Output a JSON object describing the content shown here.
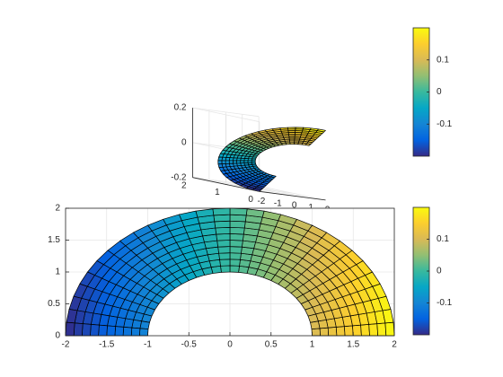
{
  "chart_data": [
    {
      "type": "surface3d",
      "title": "",
      "xlabel": "",
      "ylabel": "",
      "zlabel": "",
      "x_ticks": [
        "-2",
        "-1",
        "0",
        "1",
        "2"
      ],
      "y_ticks": [
        "0",
        "1",
        "2"
      ],
      "z_ticks": [
        "-0.2",
        "0",
        "0.2"
      ],
      "xlim": [
        -2,
        2
      ],
      "ylim": [
        0,
        2
      ],
      "zlim": [
        -0.2,
        0.2
      ],
      "grid": true,
      "surface": {
        "domain": "half-annulus",
        "r_range": [
          1,
          2
        ],
        "theta_range_deg": [
          0,
          180
        ],
        "radial_divisions": 10,
        "angular_divisions": 30,
        "z_function": "0.2 * x / 2",
        "z_range": [
          -0.2,
          0.2
        ]
      },
      "colormap": "parula",
      "colorbar": {
        "ticks": [
          "0.1",
          "0",
          "-0.1"
        ],
        "tick_values": [
          0.1,
          0,
          -0.1
        ],
        "limits": [
          -0.2,
          0.2
        ]
      }
    },
    {
      "type": "surface2d",
      "title": "",
      "xlabel": "",
      "ylabel": "",
      "x_ticks": [
        "-2",
        "-1.5",
        "-1",
        "-0.5",
        "0",
        "0.5",
        "1",
        "1.5",
        "2"
      ],
      "y_ticks": [
        "0",
        "0.5",
        "1",
        "1.5",
        "2"
      ],
      "xlim": [
        -2,
        2
      ],
      "ylim": [
        0,
        2
      ],
      "grid": true,
      "colormap": "parula",
      "colorbar": {
        "ticks": [
          "0.1",
          "0",
          "-0.1"
        ],
        "tick_values": [
          0.1,
          0,
          -0.1
        ],
        "limits": [
          -0.2,
          0.2
        ]
      }
    }
  ],
  "colors": {
    "background": "#ffffff",
    "axis": "#262626",
    "grid": "#e6e6e6",
    "mesh_edge": "#000000",
    "parula_stops": [
      "#352a87",
      "#0363e1",
      "#1485d4",
      "#06a7c6",
      "#38b99e",
      "#92bf73",
      "#d9ba56",
      "#fcce2e",
      "#f9fb0e"
    ]
  }
}
